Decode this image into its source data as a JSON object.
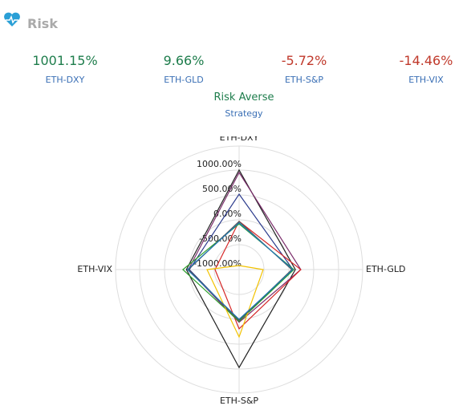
{
  "header": {
    "title": "Risk"
  },
  "stats": [
    {
      "value": "1001.15%",
      "label": "ETH-DXY"
    },
    {
      "value": "9.66%",
      "label": "ETH-GLD"
    },
    {
      "value": "-5.72%",
      "label": "ETH-S&P"
    },
    {
      "value": "-14.46%",
      "label": "ETH-VIX"
    }
  ],
  "strategy": {
    "value": "Risk Averse",
    "label": "Strategy"
  },
  "chart_data": {
    "type": "radar",
    "categories": [
      "ETH-DXY",
      "ETH-GLD",
      "ETH-S&P",
      "ETH-VIX"
    ],
    "rlim": [
      -1000,
      1000
    ],
    "rticks": [
      {
        "value": 1000,
        "label": "1000.00%"
      },
      {
        "value": 500,
        "label": "500.00%"
      },
      {
        "value": 0,
        "label": "0.00%"
      },
      {
        "value": -500,
        "label": "-500.00%"
      },
      {
        "value": -1000,
        "label": "-1000.00%"
      }
    ],
    "series": [
      {
        "color": "#222222",
        "values": [
          1001.15,
          130,
          970,
          60
        ]
      },
      {
        "color": "#2a3a8c",
        "values": [
          516,
          80,
          32,
          0
        ]
      },
      {
        "color": "#7b2d6b",
        "values": [
          950,
          240,
          60,
          20
        ]
      },
      {
        "color": "#d62728",
        "values": [
          -30,
          240,
          190,
          -516
        ]
      },
      {
        "color": "#2ca02c",
        "values": [
          -80,
          100,
          40,
          130
        ]
      },
      {
        "color": "#f2c200",
        "values": [
          -920,
          -516,
          355,
          -355
        ]
      },
      {
        "color": "#555555",
        "values": [
          -30,
          60,
          20,
          20
        ]
      },
      {
        "color": "#1f77b4",
        "values": [
          -60,
          80,
          0,
          40
        ]
      }
    ]
  }
}
